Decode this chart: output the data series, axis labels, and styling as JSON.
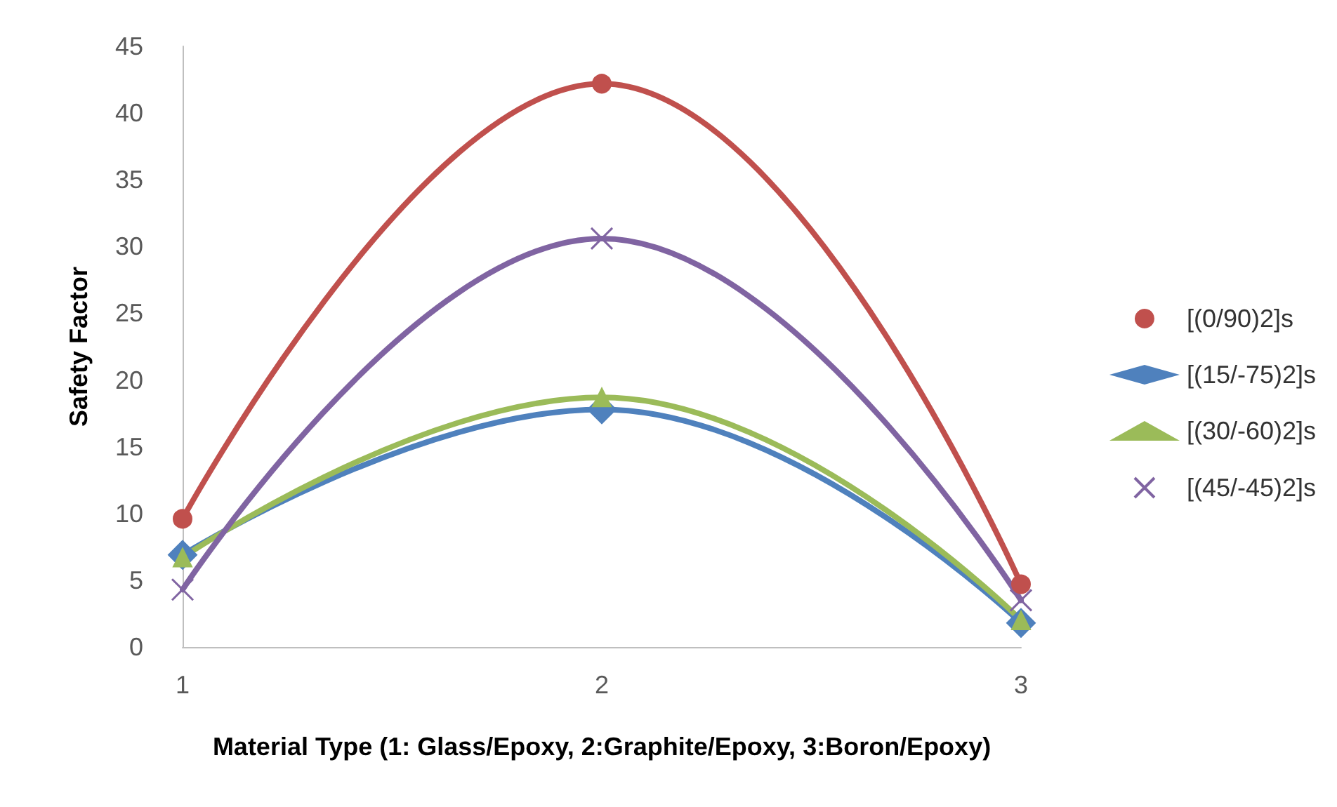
{
  "chart_data": {
    "type": "line",
    "xlabel": "Material Type (1: Glass/Epoxy, 2:Graphite/Epoxy, 3:Boron/Epoxy)",
    "ylabel": "Safety Factor",
    "categories": [
      "1",
      "2",
      "3"
    ],
    "series": [
      {
        "name": "[(0/90)2]s",
        "color": "#c0504d",
        "marker": "circle",
        "values": [
          9.6,
          42.2,
          4.7
        ]
      },
      {
        "name": "[(15/-75)2]s",
        "color": "#4f81bd",
        "marker": "diamond",
        "values": [
          6.9,
          17.8,
          1.8
        ]
      },
      {
        "name": "[(30/-60)2]s",
        "color": "#9bbb59",
        "marker": "triangle",
        "values": [
          6.7,
          18.7,
          2.0
        ]
      },
      {
        "name": "[(45/-45)2]s",
        "color": "#8064a2",
        "marker": "cross",
        "values": [
          4.3,
          30.6,
          3.5
        ]
      }
    ],
    "ylim": [
      0,
      45
    ],
    "yticks": [
      0,
      5,
      10,
      15,
      20,
      25,
      30,
      35,
      40,
      45
    ],
    "grid": false,
    "legend": "right"
  }
}
